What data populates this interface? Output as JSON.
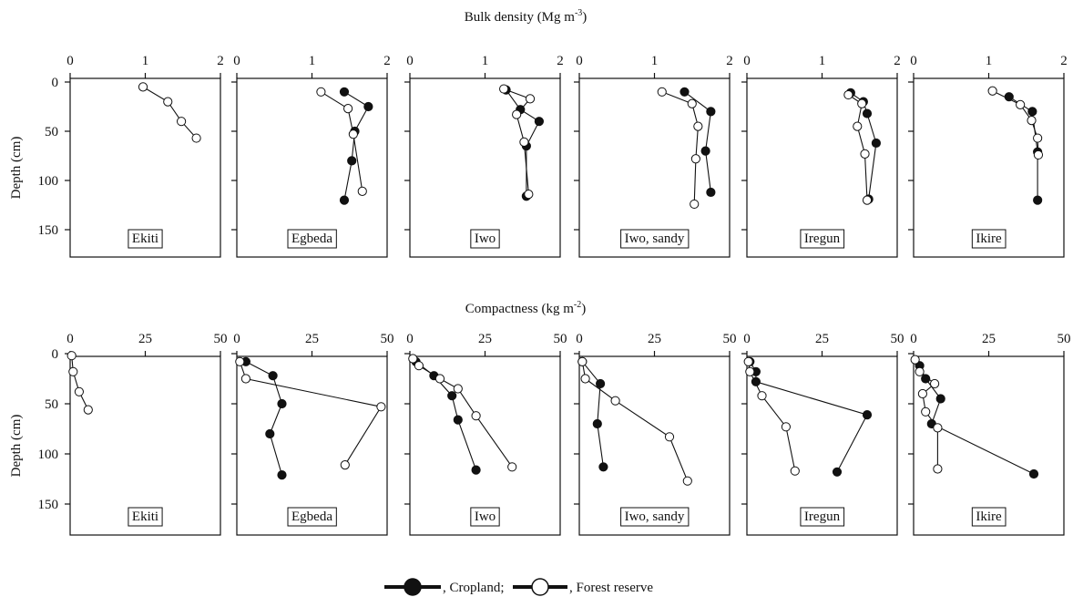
{
  "legend": {
    "cropland_label": ", Cropland;",
    "forest_label": ", Forest reserve"
  },
  "sections": [
    {
      "title_main": "Bulk density (Mg m",
      "title_sup": "-3",
      "title_end": ")",
      "ylabel": "Depth (cm)",
      "x_ticks": [
        "0",
        "1",
        "2"
      ],
      "x_range": [
        0,
        2
      ],
      "y_ticks": [
        "0",
        "50",
        "100",
        "150"
      ]
    },
    {
      "title_main": "Compactness (kg m",
      "title_sup": "-2",
      "title_end": ")",
      "ylabel": "Depth (cm)",
      "x_ticks": [
        "0",
        "25",
        "50"
      ],
      "x_range": [
        0,
        50
      ],
      "y_ticks": [
        "0",
        "50",
        "100",
        "150"
      ]
    }
  ],
  "chart_data": [
    {
      "type": "line",
      "title": "Bulk density (Mg m-3)",
      "xlabel": "Bulk density (Mg m-3)",
      "ylabel": "Depth (cm)",
      "xlim": [
        0,
        2
      ],
      "ylim": [
        0,
        180
      ],
      "y_inverted": true,
      "legend": [
        "Cropland",
        "Forest reserve"
      ],
      "panels": [
        {
          "site": "Ekiti",
          "series": [
            {
              "name": "Forest reserve",
              "points": [
                [
                  0.97,
                  5
                ],
                [
                  1.3,
                  20
                ],
                [
                  1.48,
                  40
                ],
                [
                  1.68,
                  57
                ]
              ]
            }
          ]
        },
        {
          "site": "Egbeda",
          "series": [
            {
              "name": "Cropland",
              "points": [
                [
                  1.43,
                  10
                ],
                [
                  1.75,
                  25
                ],
                [
                  1.57,
                  50
                ],
                [
                  1.53,
                  80
                ],
                [
                  1.43,
                  120
                ]
              ]
            },
            {
              "name": "Forest reserve",
              "points": [
                [
                  1.12,
                  10
                ],
                [
                  1.48,
                  27
                ],
                [
                  1.55,
                  53
                ],
                [
                  1.67,
                  111
                ]
              ]
            }
          ]
        },
        {
          "site": "Iwo",
          "series": [
            {
              "name": "Cropland",
              "points": [
                [
                  1.28,
                  8
                ],
                [
                  1.47,
                  28
                ],
                [
                  1.72,
                  40
                ],
                [
                  1.55,
                  65
                ],
                [
                  1.55,
                  116
                ]
              ]
            },
            {
              "name": "Forest reserve",
              "points": [
                [
                  1.25,
                  7
                ],
                [
                  1.6,
                  17
                ],
                [
                  1.42,
                  33
                ],
                [
                  1.52,
                  61
                ],
                [
                  1.58,
                  114
                ]
              ]
            }
          ]
        },
        {
          "site": "Iwo, sandy",
          "series": [
            {
              "name": "Cropland",
              "points": [
                [
                  1.4,
                  10
                ],
                [
                  1.75,
                  30
                ],
                [
                  1.68,
                  70
                ],
                [
                  1.75,
                  112
                ]
              ]
            },
            {
              "name": "Forest reserve",
              "points": [
                [
                  1.1,
                  10
                ],
                [
                  1.5,
                  22
                ],
                [
                  1.58,
                  45
                ],
                [
                  1.55,
                  78
                ],
                [
                  1.53,
                  124
                ]
              ]
            }
          ]
        },
        {
          "site": "Iregun",
          "series": [
            {
              "name": "Cropland",
              "points": [
                [
                  1.38,
                  11
                ],
                [
                  1.55,
                  20
                ],
                [
                  1.6,
                  32
                ],
                [
                  1.72,
                  62
                ],
                [
                  1.62,
                  119
                ]
              ]
            },
            {
              "name": "Forest reserve",
              "points": [
                [
                  1.35,
                  13
                ],
                [
                  1.53,
                  22
                ],
                [
                  1.47,
                  45
                ],
                [
                  1.57,
                  73
                ],
                [
                  1.6,
                  120
                ]
              ]
            }
          ]
        },
        {
          "site": "Ikire",
          "series": [
            {
              "name": "Cropland",
              "points": [
                [
                  1.27,
                  15
                ],
                [
                  1.58,
                  30
                ],
                [
                  1.65,
                  71
                ],
                [
                  1.65,
                  120
                ]
              ]
            },
            {
              "name": "Forest reserve",
              "points": [
                [
                  1.05,
                  9
                ],
                [
                  1.42,
                  23
                ],
                [
                  1.57,
                  39
                ],
                [
                  1.65,
                  57
                ],
                [
                  1.66,
                  74
                ]
              ]
            }
          ]
        }
      ]
    },
    {
      "type": "line",
      "title": "Compactness (kg m-2)",
      "xlabel": "Compactness (kg m-2)",
      "ylabel": "Depth (cm)",
      "xlim": [
        0,
        50
      ],
      "ylim": [
        0,
        180
      ],
      "y_inverted": true,
      "legend": [
        "Cropland",
        "Forest reserve"
      ],
      "panels": [
        {
          "site": "Ekiti",
          "series": [
            {
              "name": "Forest reserve",
              "points": [
                [
                  0.5,
                  2
                ],
                [
                  1,
                  18
                ],
                [
                  3,
                  38
                ],
                [
                  6,
                  56
                ]
              ]
            }
          ]
        },
        {
          "site": "Egbeda",
          "series": [
            {
              "name": "Cropland",
              "points": [
                [
                  3,
                  8
                ],
                [
                  12,
                  22
                ],
                [
                  15,
                  50
                ],
                [
                  11,
                  80
                ],
                [
                  15,
                  121
                ]
              ]
            },
            {
              "name": "Forest reserve",
              "points": [
                [
                  1,
                  8
                ],
                [
                  3,
                  25
                ],
                [
                  48,
                  53
                ],
                [
                  36,
                  111
                ]
              ]
            }
          ]
        },
        {
          "site": "Iwo",
          "series": [
            {
              "name": "Cropland",
              "points": [
                [
                  2,
                  8
                ],
                [
                  8,
                  22
                ],
                [
                  14,
                  42
                ],
                [
                  16,
                  66
                ],
                [
                  22,
                  116
                ]
              ]
            },
            {
              "name": "Forest reserve",
              "points": [
                [
                  1,
                  5
                ],
                [
                  3,
                  12
                ],
                [
                  10,
                  25
                ],
                [
                  16,
                  35
                ],
                [
                  22,
                  62
                ],
                [
                  34,
                  113
                ]
              ]
            }
          ]
        },
        {
          "site": "Iwo, sandy",
          "series": [
            {
              "name": "Cropland",
              "points": [
                [
                  1,
                  8
                ],
                [
                  7,
                  30
                ],
                [
                  6,
                  70
                ],
                [
                  8,
                  113
                ]
              ]
            },
            {
              "name": "Forest reserve",
              "points": [
                [
                  1,
                  8
                ],
                [
                  2,
                  25
                ],
                [
                  12,
                  47
                ],
                [
                  30,
                  83
                ],
                [
                  36,
                  127
                ]
              ]
            }
          ]
        },
        {
          "site": "Iregun",
          "series": [
            {
              "name": "Cropland",
              "points": [
                [
                  1,
                  8
                ],
                [
                  3,
                  18
                ],
                [
                  3,
                  28
                ],
                [
                  40,
                  61
                ],
                [
                  30,
                  118
                ]
              ]
            },
            {
              "name": "Forest reserve",
              "points": [
                [
                  0.5,
                  8
                ],
                [
                  1,
                  18
                ],
                [
                  5,
                  42
                ],
                [
                  13,
                  73
                ],
                [
                  16,
                  117
                ]
              ]
            }
          ]
        },
        {
          "site": "Ikire",
          "series": [
            {
              "name": "Cropland",
              "points": [
                [
                  2,
                  12
                ],
                [
                  4,
                  25
                ],
                [
                  9,
                  45
                ],
                [
                  6,
                  70
                ],
                [
                  40,
                  120
                ]
              ]
            },
            {
              "name": "Forest reserve",
              "points": [
                [
                  0.5,
                  6
                ],
                [
                  2,
                  18
                ],
                [
                  7,
                  30
                ],
                [
                  3,
                  40
                ],
                [
                  4,
                  58
                ],
                [
                  8,
                  74
                ],
                [
                  8,
                  115
                ]
              ]
            }
          ]
        }
      ]
    }
  ]
}
